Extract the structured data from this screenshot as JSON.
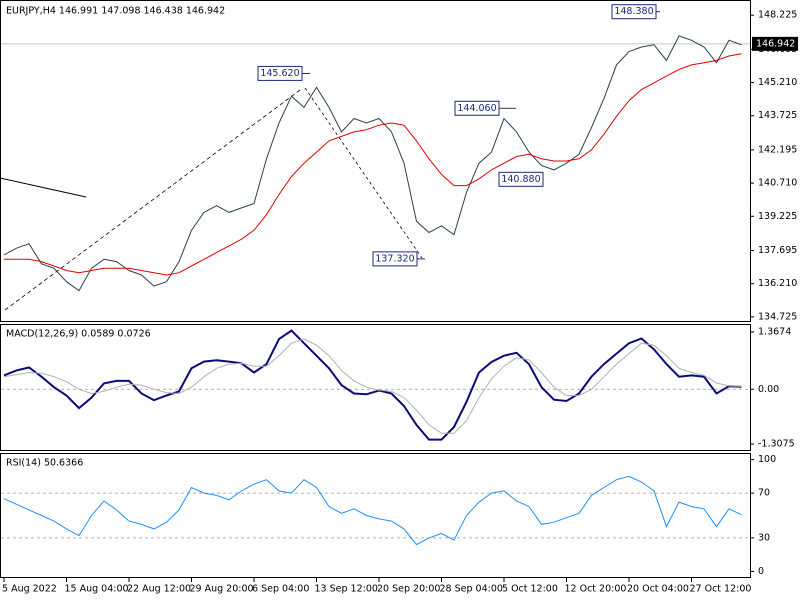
{
  "chart_data": [
    {
      "type": "line",
      "title": "EURJPY,H4 146.991 147.098 146.438 146.942",
      "categories": [
        "5 Aug 2022",
        null,
        null,
        null,
        null,
        "15 Aug 04:00",
        null,
        null,
        null,
        null,
        "22 Aug 12:00",
        null,
        null,
        null,
        null,
        "29 Aug 20:00",
        null,
        null,
        null,
        null,
        "6 Sep 04:00",
        null,
        null,
        null,
        null,
        "13 Sep 12:00",
        null,
        null,
        null,
        null,
        "20 Sep 20:00",
        null,
        null,
        null,
        null,
        "28 Sep 04:00",
        null,
        null,
        null,
        null,
        "5 Oct 12:00",
        null,
        null,
        null,
        null,
        "12 Oct 20:00",
        null,
        null,
        null,
        null,
        "20 Oct 04:00",
        null,
        null,
        null,
        null,
        "27 Oct 12:00",
        null,
        null,
        null,
        null
      ],
      "series": [
        {
          "color": "#2a4444",
          "values": [
            137.5,
            137.8,
            138.0,
            137.1,
            136.9,
            136.3,
            135.9,
            136.9,
            137.3,
            137.2,
            136.8,
            136.6,
            136.1,
            136.3,
            137.2,
            138.6,
            139.4,
            139.7,
            139.4,
            139.6,
            139.8,
            141.8,
            143.4,
            144.6,
            144.1,
            145.0,
            144.1,
            143.0,
            143.6,
            143.4,
            143.6,
            143.0,
            141.6,
            139.0,
            138.5,
            138.8,
            138.4,
            140.3,
            141.6,
            142.1,
            143.6,
            143.0,
            142.1,
            141.5,
            141.3,
            141.6,
            142.0,
            143.2,
            144.5,
            146.0,
            146.6,
            146.8,
            146.9,
            146.2,
            147.3,
            147.1,
            146.8,
            146.1,
            147.1,
            146.9
          ]
        },
        {
          "color": "#e00000",
          "values": [
            137.3,
            137.3,
            137.3,
            137.2,
            137.0,
            136.8,
            136.7,
            136.8,
            136.9,
            136.9,
            136.9,
            136.8,
            136.7,
            136.6,
            136.7,
            137.0,
            137.3,
            137.6,
            137.9,
            138.2,
            138.6,
            139.3,
            140.2,
            141.0,
            141.6,
            142.1,
            142.6,
            142.8,
            143.0,
            143.1,
            143.3,
            143.4,
            143.3,
            142.6,
            141.8,
            141.1,
            140.6,
            140.6,
            140.9,
            141.3,
            141.6,
            141.9,
            142.0,
            141.8,
            141.7,
            141.7,
            141.8,
            142.2,
            142.9,
            143.7,
            144.4,
            144.9,
            145.2,
            145.5,
            145.8,
            146.0,
            146.1,
            146.2,
            146.4,
            146.5
          ]
        }
      ],
      "ylim": [
        134.54,
        148.86
      ],
      "yticks": [
        134.725,
        {
          "value": 136.21,
          "label": "136.210"
        },
        137.695,
        139.225,
        {
          "value": 140.71,
          "label": "140.710"
        },
        142.195,
        143.725,
        {
          "value": 145.21,
          "label": "145.210"
        },
        146.695,
        148.225
      ],
      "grid": false,
      "last_price": 146.942,
      "annotations": [
        {
          "value": 145.62,
          "label": "145.620"
        },
        {
          "value": 137.32,
          "label": "137.320"
        },
        {
          "value": 144.06,
          "label": "144.060"
        },
        {
          "value": 140.88,
          "label": "140.880"
        },
        {
          "value": 148.38,
          "label": "148.380"
        }
      ]
    },
    {
      "type": "line",
      "title": "MACD(12,26,9) 0.0589 0.0726",
      "series": [
        {
          "color": "#0a0a7a",
          "values": [
            0.33,
            0.45,
            0.52,
            0.3,
            0.05,
            -0.15,
            -0.45,
            -0.2,
            0.14,
            0.2,
            0.2,
            -0.1,
            -0.26,
            -0.15,
            -0.05,
            0.5,
            0.66,
            0.69,
            0.66,
            0.62,
            0.4,
            0.6,
            1.2,
            1.4,
            1.1,
            0.8,
            0.5,
            0.1,
            -0.1,
            -0.12,
            -0.03,
            -0.1,
            -0.4,
            -0.85,
            -1.2,
            -1.2,
            -0.9,
            -0.3,
            0.4,
            0.65,
            0.8,
            0.87,
            0.6,
            0.05,
            -0.25,
            -0.28,
            -0.1,
            0.3,
            0.6,
            0.85,
            1.1,
            1.21,
            0.95,
            0.6,
            0.3,
            0.33,
            0.3,
            -0.1,
            0.07,
            0.0589
          ]
        },
        {
          "color": "#b0b0b0",
          "values": [
            0.3,
            0.35,
            0.4,
            0.38,
            0.3,
            0.18,
            0,
            -0.1,
            -0.05,
            0.05,
            0.12,
            0.1,
            0,
            -0.08,
            -0.1,
            0.05,
            0.3,
            0.5,
            0.6,
            0.62,
            0.55,
            0.55,
            0.8,
            1.1,
            1.2,
            1.05,
            0.8,
            0.45,
            0.2,
            0.05,
            -0.02,
            -0.05,
            -0.2,
            -0.5,
            -0.85,
            -1.05,
            -1.05,
            -0.75,
            -0.2,
            0.25,
            0.55,
            0.75,
            0.7,
            0.4,
            0.05,
            -0.15,
            -0.15,
            0,
            0.3,
            0.6,
            0.85,
            1.1,
            1.05,
            0.8,
            0.5,
            0.4,
            0.33,
            0.15,
            0.08,
            0.0726
          ]
        }
      ],
      "ylim": [
        -1.449,
        1.533
      ],
      "yticks": [
        1.3674,
        {
          "value": 0,
          "label": "0.00"
        },
        -1.3075
      ],
      "grid": true
    },
    {
      "type": "line",
      "title": "RSI(14) 50.6366",
      "series": [
        {
          "color": "#1e90ff",
          "values": [
            65,
            60,
            55,
            50,
            45,
            38,
            32,
            50,
            63,
            55,
            45,
            42,
            38,
            44,
            55,
            75,
            70,
            68,
            64,
            72,
            78,
            82,
            72,
            70,
            82,
            75,
            58,
            52,
            56,
            50,
            47,
            45,
            38,
            24,
            30,
            34,
            28,
            50,
            62,
            70,
            72,
            63,
            58,
            42,
            44,
            48,
            52,
            68,
            75,
            82,
            85,
            80,
            72,
            40,
            62,
            58,
            56,
            40,
            56,
            50.6366
          ]
        }
      ],
      "ylim": [
        -5,
        105
      ],
      "yticks": [
        100,
        70,
        30,
        0
      ],
      "grid": true
    }
  ]
}
